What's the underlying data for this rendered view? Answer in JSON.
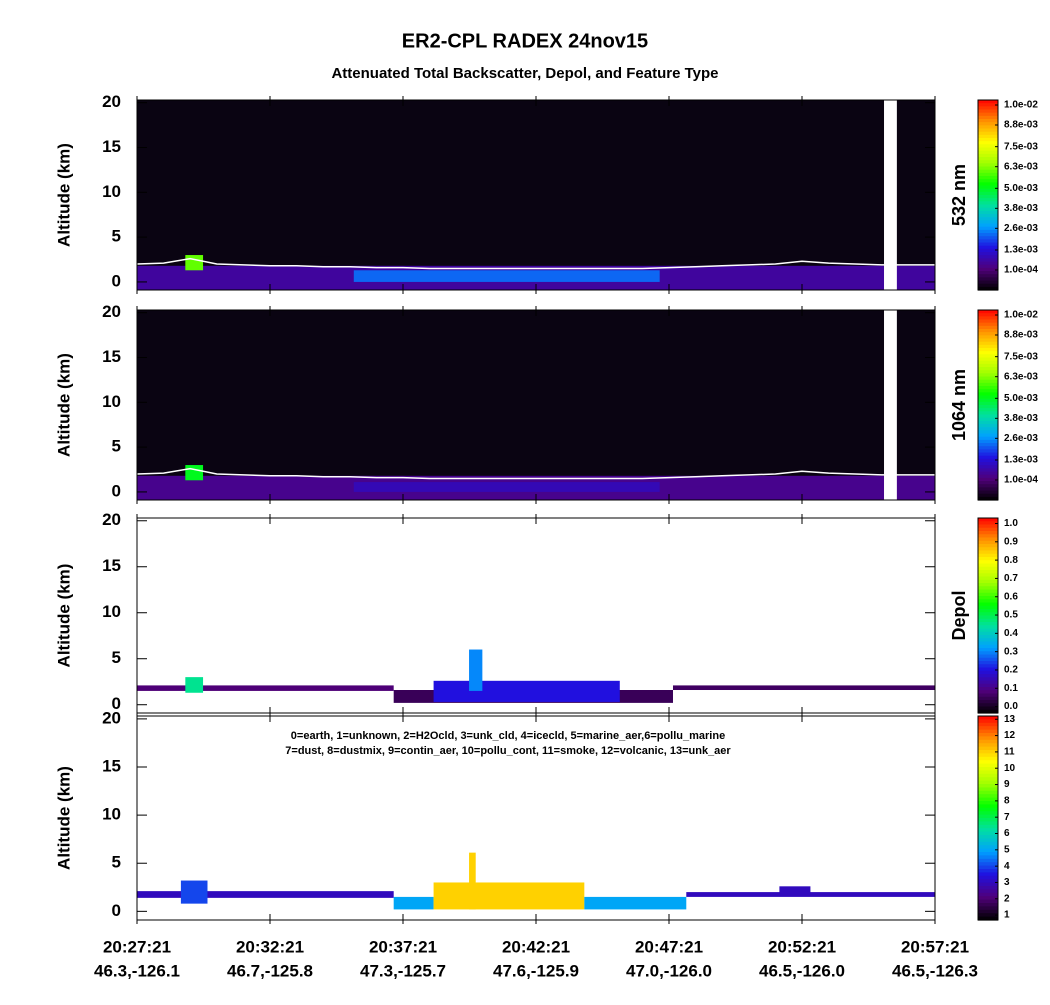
{
  "title": "ER2-CPL RADEX 24nov15",
  "subtitle": "Attenuated Total Backscatter, Depol, and Feature Type",
  "x_axis": {
    "xlim": [
      "20:27:21",
      "20:57:21"
    ],
    "xticks": [
      "20:27:21",
      "20:32:21",
      "20:37:21",
      "20:42:21",
      "20:47:21",
      "20:52:21",
      "20:57:21"
    ],
    "xtick_positions": [
      "46.3,-126.1",
      "46.7,-125.8",
      "47.3,-125.7",
      "47.6,-125.9",
      "47.0,-126.0",
      "46.5,-126.0",
      "46.5,-126.3"
    ]
  },
  "colormap": [
    "#000000",
    "#50007a",
    "#2010e0",
    "#00a0ff",
    "#00e0a0",
    "#00ff00",
    "#a0ff00",
    "#ffff00",
    "#ff9000",
    "#ff0000"
  ],
  "chart_data": [
    {
      "type": "heatmap",
      "ylabel": "Altitude (km)",
      "ylim": [
        -0.9,
        20.3
      ],
      "yticks": [
        0,
        5,
        10,
        15,
        20
      ],
      "background": "#0a0412",
      "colorbar": {
        "label": "532 nm",
        "clim": [
          -0.0011,
          0.0103
        ],
        "ticks": [
          {
            "value": 0.0001,
            "label": "1.0e-04"
          },
          {
            "value": 0.0013,
            "label": "1.3e-03"
          },
          {
            "value": 0.0026,
            "label": "2.6e-03"
          },
          {
            "value": 0.0038,
            "label": "3.8e-03"
          },
          {
            "value": 0.005,
            "label": "5.0e-03"
          },
          {
            "value": 0.0063,
            "label": "6.3e-03"
          },
          {
            "value": 0.0075,
            "label": "7.5e-03"
          },
          {
            "value": 0.0088,
            "label": "8.8e-03"
          },
          {
            "value": 0.01,
            "label": "1.0e-02"
          }
        ]
      },
      "layers": [
        {
          "start": "20:27:21",
          "end": "20:57:21",
          "base": -0.9,
          "top": 1.8,
          "value": 0.0006
        },
        {
          "start": "20:35:30",
          "end": "20:47:00",
          "base": 0,
          "top": 1.3,
          "value": 0.0022
        },
        {
          "start": "20:29:10",
          "end": "20:29:50",
          "base": 1.3,
          "top": 3.0,
          "value": 0.006
        }
      ],
      "missing": [
        "20:55:26",
        "20:55:55"
      ],
      "line": {
        "color": "#ffffff",
        "x": [
          "20:27:21",
          "20:28:21",
          "20:29:21",
          "20:30:21",
          "20:31:21",
          "20:32:21",
          "20:33:21",
          "20:34:21",
          "20:35:21",
          "20:36:21",
          "20:37:21",
          "20:38:21",
          "20:39:21",
          "20:40:21",
          "20:41:21",
          "20:42:21",
          "20:43:21",
          "20:44:21",
          "20:45:21",
          "20:46:21",
          "20:47:21",
          "20:48:21",
          "20:49:21",
          "20:50:21",
          "20:51:21",
          "20:52:21",
          "20:53:21",
          "20:54:21",
          "20:55:21",
          "20:56:21",
          "20:57:21"
        ],
        "values": [
          2.0,
          2.1,
          2.6,
          2.0,
          1.9,
          1.8,
          1.8,
          1.7,
          1.7,
          1.6,
          1.6,
          1.5,
          1.5,
          1.5,
          1.5,
          1.5,
          1.5,
          1.5,
          1.5,
          1.5,
          1.6,
          1.7,
          1.8,
          1.9,
          2.0,
          2.3,
          2.1,
          2.0,
          1.9,
          1.9,
          1.9
        ]
      }
    },
    {
      "type": "heatmap",
      "ylabel": "Altitude (km)",
      "ylim": [
        -0.9,
        20.3
      ],
      "yticks": [
        0,
        5,
        10,
        15,
        20
      ],
      "background": "#0a0412",
      "colorbar": {
        "label": "1064 nm",
        "clim": [
          -0.0011,
          0.0103
        ],
        "ticks": [
          {
            "value": 0.0001,
            "label": "1.0e-04"
          },
          {
            "value": 0.0013,
            "label": "1.3e-03"
          },
          {
            "value": 0.0026,
            "label": "2.6e-03"
          },
          {
            "value": 0.0038,
            "label": "3.8e-03"
          },
          {
            "value": 0.005,
            "label": "5.0e-03"
          },
          {
            "value": 0.0063,
            "label": "6.3e-03"
          },
          {
            "value": 0.0075,
            "label": "7.5e-03"
          },
          {
            "value": 0.0088,
            "label": "8.8e-03"
          },
          {
            "value": 0.01,
            "label": "1.0e-02"
          }
        ]
      },
      "layers": [
        {
          "start": "20:27:21",
          "end": "20:57:21",
          "base": -0.9,
          "top": 1.8,
          "value": 0.0004
        },
        {
          "start": "20:35:30",
          "end": "20:47:00",
          "base": 0,
          "top": 1.1,
          "value": 0.0009
        },
        {
          "start": "20:29:10",
          "end": "20:29:50",
          "base": 1.3,
          "top": 3.0,
          "value": 0.005
        }
      ],
      "missing": [
        "20:55:26",
        "20:55:55"
      ],
      "line": {
        "color": "#ffffff",
        "x": [
          "20:27:21",
          "20:28:21",
          "20:29:21",
          "20:30:21",
          "20:31:21",
          "20:32:21",
          "20:33:21",
          "20:34:21",
          "20:35:21",
          "20:36:21",
          "20:37:21",
          "20:38:21",
          "20:39:21",
          "20:40:21",
          "20:41:21",
          "20:42:21",
          "20:43:21",
          "20:44:21",
          "20:45:21",
          "20:46:21",
          "20:47:21",
          "20:48:21",
          "20:49:21",
          "20:50:21",
          "20:51:21",
          "20:52:21",
          "20:53:21",
          "20:54:21",
          "20:55:21",
          "20:56:21",
          "20:57:21"
        ],
        "values": [
          2.0,
          2.1,
          2.6,
          2.0,
          1.9,
          1.8,
          1.8,
          1.7,
          1.7,
          1.6,
          1.6,
          1.5,
          1.5,
          1.5,
          1.5,
          1.5,
          1.5,
          1.5,
          1.5,
          1.5,
          1.6,
          1.7,
          1.8,
          1.9,
          2.0,
          2.3,
          2.1,
          2.0,
          1.9,
          1.9,
          1.9
        ]
      }
    },
    {
      "type": "heatmap",
      "ylabel": "Altitude (km)",
      "ylim": [
        -0.9,
        20.3
      ],
      "yticks": [
        0,
        5,
        10,
        15,
        20
      ],
      "background": "#ffffff",
      "colorbar": {
        "label": "Depol",
        "clim": [
          -0.035,
          1.03
        ],
        "ticks": [
          {
            "value": 0,
            "label": "0.0"
          },
          0.1,
          0.2,
          0.3,
          0.4,
          0.5,
          0.6,
          0.7,
          0.8,
          0.9,
          {
            "value": 1,
            "label": "1.0"
          }
        ]
      },
      "layers": [
        {
          "start": "20:27:21",
          "end": "20:37:00",
          "base": 1.5,
          "top": 2.1,
          "value": 0.08
        },
        {
          "start": "20:37:00",
          "end": "20:47:30",
          "base": 0.2,
          "top": 1.6,
          "value": 0.05
        },
        {
          "start": "20:38:30",
          "end": "20:45:30",
          "base": 0.3,
          "top": 2.6,
          "value": 0.2
        },
        {
          "start": "20:39:50",
          "end": "20:40:20",
          "base": 1.5,
          "top": 6.0,
          "value": 0.3
        },
        {
          "start": "20:47:30",
          "end": "20:57:21",
          "base": 1.6,
          "top": 2.1,
          "value": 0.06
        },
        {
          "start": "20:29:10",
          "end": "20:29:50",
          "base": 1.3,
          "top": 3.0,
          "value": 0.45
        }
      ]
    },
    {
      "type": "heatmap",
      "ylabel": "Altitude (km)",
      "ylim": [
        -0.9,
        20.3
      ],
      "yticks": [
        0,
        5,
        10,
        15,
        20
      ],
      "background": "#ffffff",
      "annotations": [
        "0=earth, 1=unknown, 2=H2Ocld, 3=unk_cld, 4=icecld, 5=marine_aer,6=pollu_marine",
        "7=dust, 8=dustmix, 9=contin_aer, 10=pollu_cont, 11=smoke, 12=volcanic, 13=unk_aer"
      ],
      "colorbar": {
        "clim": [
          0.7,
          13.2
        ],
        "ticks": [
          1,
          2,
          3,
          4,
          5,
          6,
          7,
          8,
          9,
          10,
          11,
          12,
          13
        ]
      },
      "layers": [
        {
          "start": "20:27:21",
          "end": "20:37:00",
          "base": 1.4,
          "top": 2.1,
          "value": 3
        },
        {
          "start": "20:29:00",
          "end": "20:30:00",
          "base": 0.8,
          "top": 3.2,
          "value": 4
        },
        {
          "start": "20:37:00",
          "end": "20:38:30",
          "base": 0.2,
          "top": 1.5,
          "value": 5
        },
        {
          "start": "20:38:30",
          "end": "20:44:10",
          "base": 0.2,
          "top": 3.0,
          "value": 11
        },
        {
          "start": "20:39:50",
          "end": "20:40:05",
          "base": 0.2,
          "top": 6.1,
          "value": 11
        },
        {
          "start": "20:44:10",
          "end": "20:48:00",
          "base": 0.2,
          "top": 1.5,
          "value": 5
        },
        {
          "start": "20:48:00",
          "end": "20:57:21",
          "base": 1.5,
          "top": 2.0,
          "value": 3
        },
        {
          "start": "20:51:30",
          "end": "20:52:40",
          "base": 1.8,
          "top": 2.6,
          "value": 3
        }
      ]
    }
  ]
}
